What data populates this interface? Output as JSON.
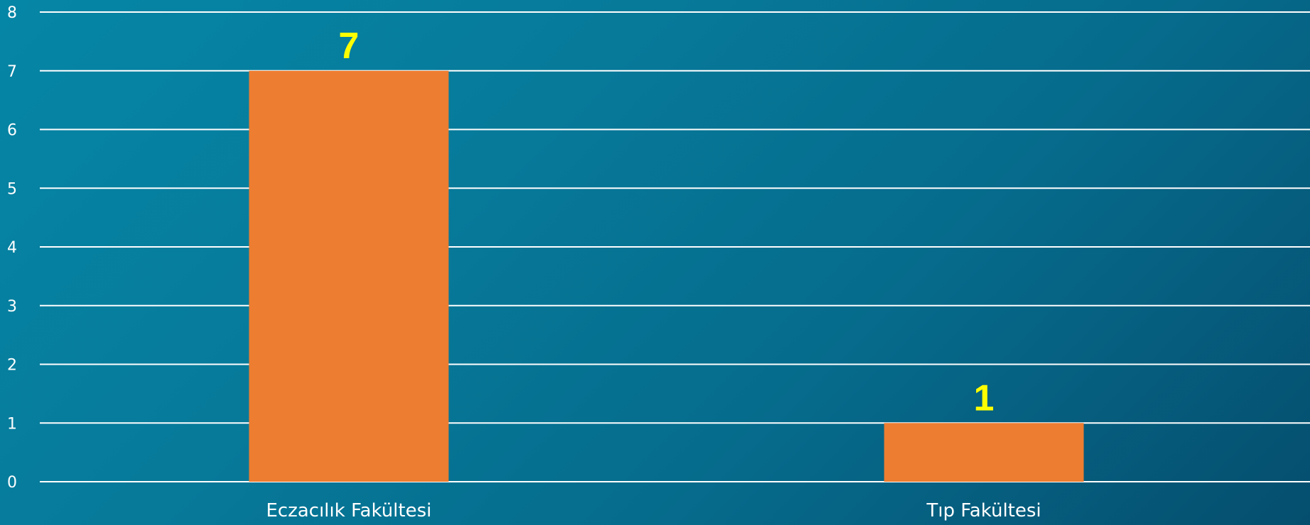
{
  "chart_data": {
    "type": "bar",
    "categories": [
      "Eczacılık Fakültesi",
      "Tıp Fakültesi"
    ],
    "values": [
      7,
      1
    ],
    "data_labels": [
      "7",
      "1"
    ],
    "ylim": [
      0,
      8
    ],
    "yticks": [
      "0",
      "1",
      "2",
      "3",
      "4",
      "5",
      "6",
      "7",
      "8"
    ],
    "grid": true,
    "legend": "none",
    "colors": {
      "bar": "#ed7d31",
      "data_label": "#ffff00",
      "grid": "#ffffff"
    }
  }
}
